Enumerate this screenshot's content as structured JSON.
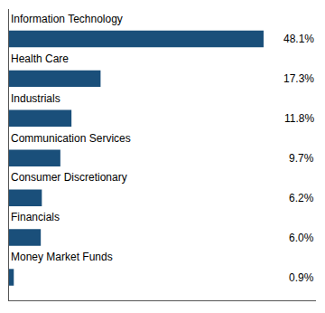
{
  "chart_data": {
    "type": "bar",
    "orientation": "horizontal",
    "categories": [
      "Money Market Funds",
      "Financials",
      "Consumer Discretionary",
      "Communication Services",
      "Industrials",
      "Health Care",
      "Information Technology"
    ],
    "values": [
      0.9,
      6.0,
      6.2,
      9.7,
      11.8,
      17.3,
      48.1
    ],
    "value_labels": [
      "0.9%",
      "6.0%",
      "6.2%",
      "9.7%",
      "11.8%",
      "17.3%",
      "48.1%"
    ],
    "data_labels": true,
    "color": "#1a4f7a",
    "xlim": [
      0,
      58
    ],
    "tick_labels": false,
    "grid": false
  }
}
